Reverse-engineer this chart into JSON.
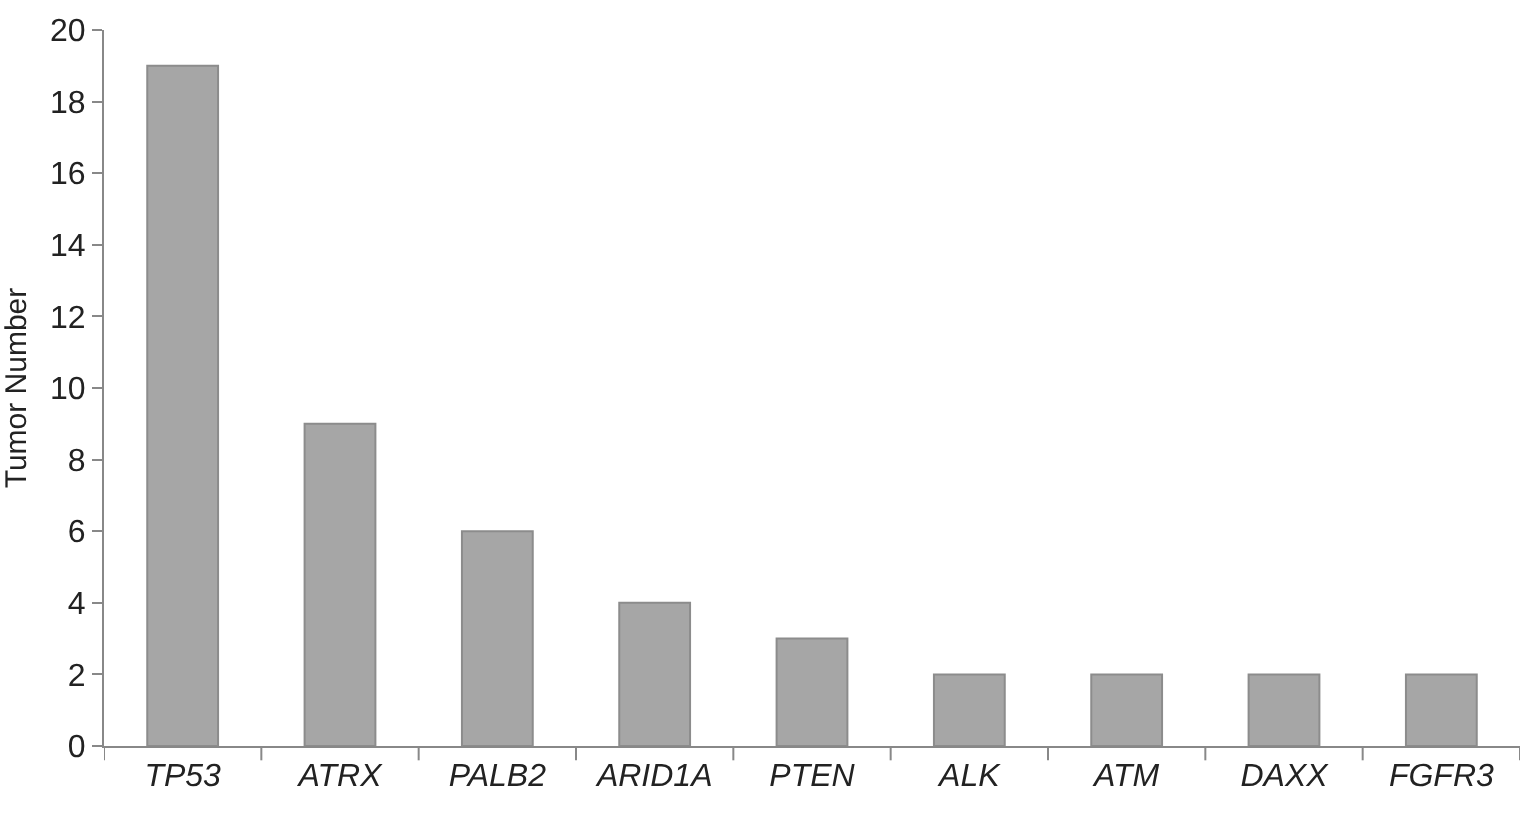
{
  "chart_data": {
    "type": "bar",
    "ylabel": "Tumor Number",
    "categories": [
      "TP53",
      "ATRX",
      "PALB2",
      "ARID1A",
      "PTEN",
      "ALK",
      "ATM",
      "DAXX",
      "FGFR3"
    ],
    "values": [
      19,
      9,
      6,
      4,
      3,
      2,
      2,
      2,
      2
    ],
    "color": "#a6a6a6",
    "ylim": [
      0,
      20
    ],
    "yticks": [
      0,
      2,
      4,
      6,
      8,
      10,
      12,
      14,
      16,
      18,
      20
    ],
    "grid": false
  }
}
